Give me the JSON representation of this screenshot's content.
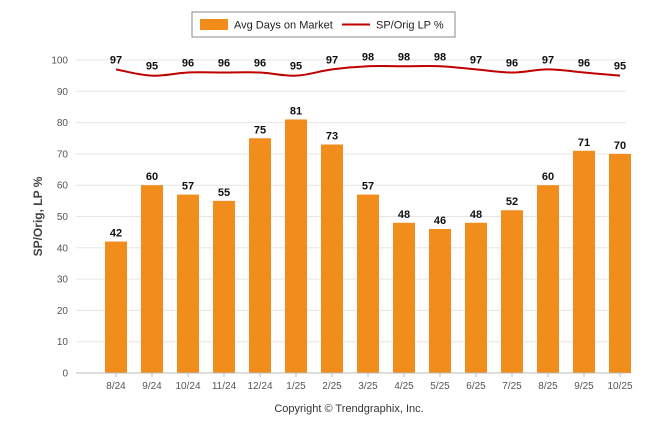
{
  "chart_data": {
    "type": "bar",
    "categories": [
      "8/24",
      "9/24",
      "10/24",
      "11/24",
      "12/24",
      "1/25",
      "2/25",
      "3/25",
      "4/25",
      "5/25",
      "6/25",
      "7/25",
      "8/25",
      "9/25",
      "10/25"
    ],
    "series": [
      {
        "name": "Avg Days on Market",
        "type": "bar",
        "color": "#f28c1a",
        "values": [
          42,
          60,
          57,
          55,
          75,
          81,
          73,
          57,
          48,
          46,
          48,
          52,
          60,
          71,
          70
        ]
      },
      {
        "name": "SP/Orig LP %",
        "type": "line",
        "color": "#c00000",
        "values": [
          97,
          95,
          96,
          96,
          96,
          95,
          97,
          98,
          98,
          98,
          97,
          96,
          97,
          96,
          95
        ]
      }
    ],
    "title": "",
    "xlabel": "",
    "ylabel": "SP/Orig, LP %",
    "ylim": [
      0,
      100
    ],
    "yticks": [
      0,
      10,
      20,
      30,
      40,
      50,
      60,
      70,
      80,
      90,
      100
    ],
    "grid": true,
    "legend_position": "top-center",
    "footer": "Copyright © Trendgraphix, Inc."
  }
}
